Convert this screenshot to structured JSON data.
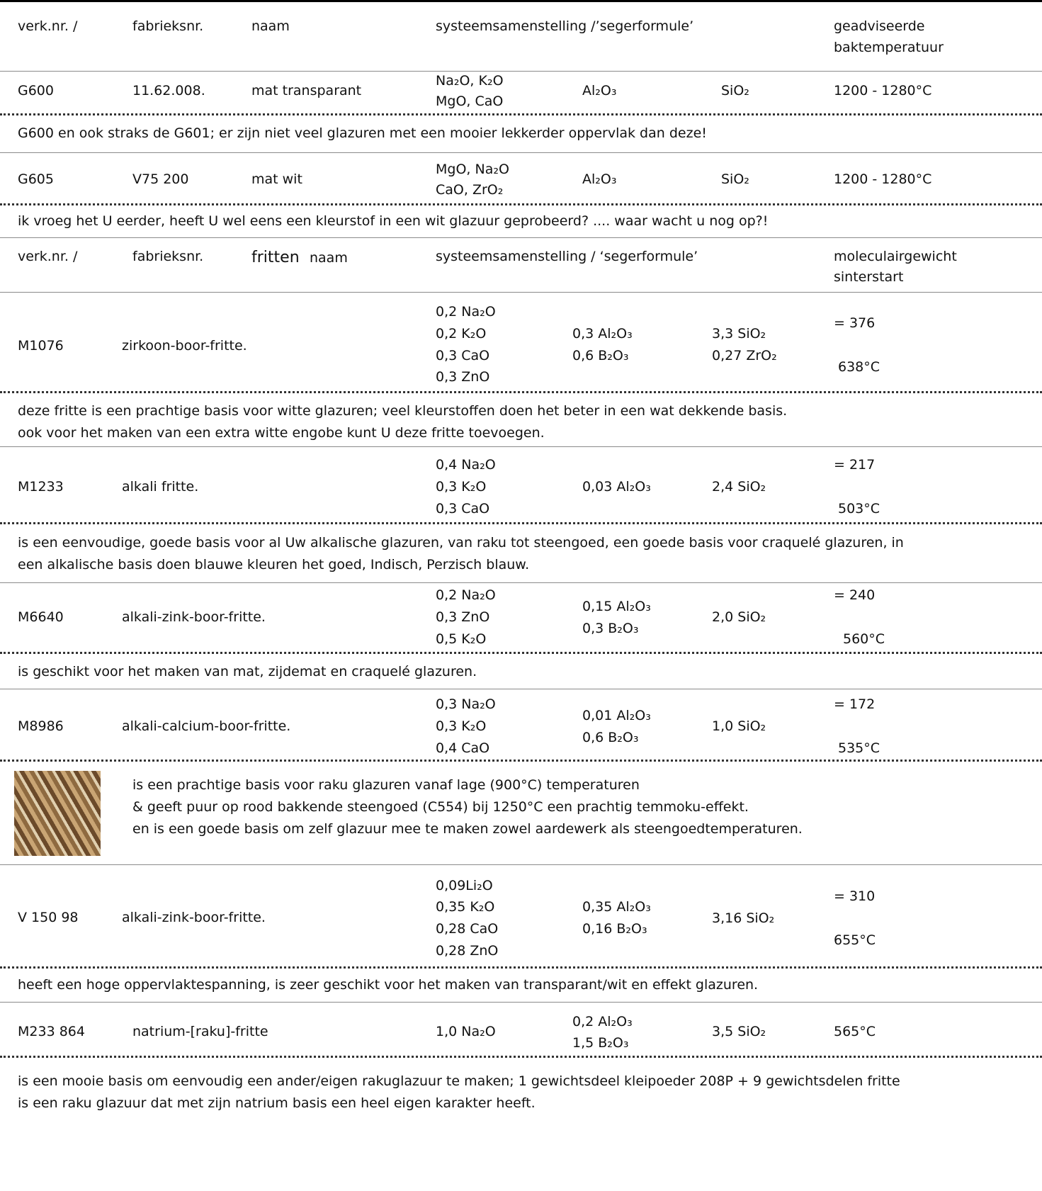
{
  "glazes": {
    "header": {
      "verk": "verk.nr. /",
      "fabr": "fabrieksnr.",
      "naam": "naam",
      "systeem": "systeemsamenstelling /’segerformule’",
      "temp": [
        "geadviseerde",
        "baktemperatuur"
      ]
    },
    "items": [
      {
        "verk": "G600",
        "fabr": "11.62.008.",
        "naam": "mat transparant",
        "flux": [
          "Na₂O, K₂O",
          "MgO, CaO"
        ],
        "alumina": [
          "Al₂O₃"
        ],
        "silica": [
          "SiO₂"
        ],
        "temp": "1200 - 1280°C",
        "comment": [
          "G600 en ook straks de G601; er zijn niet veel glazuren met een mooier lekkerder oppervlak dan deze!"
        ]
      },
      {
        "verk": "G605",
        "fabr": "V75 200",
        "naam": "mat wit",
        "flux": [
          "MgO, Na₂O",
          "CaO, ZrO₂"
        ],
        "alumina": [
          "Al₂O₃"
        ],
        "silica": [
          "SiO₂"
        ],
        "temp": "1200 - 1280°C",
        "comment": [
          "ik vroeg het U eerder, heeft U wel eens een kleurstof in een wit glazuur geprobeerd? .... waar wacht u nog op?!"
        ]
      }
    ]
  },
  "frits": {
    "header": {
      "verk": "verk.nr. /",
      "fabr": "fabrieksnr.",
      "fritten": "fritten",
      "naam": "naam",
      "systeem": "systeemsamenstelling / ‘segerformule’",
      "mw": [
        "moleculairgewicht",
        "sinterstart"
      ]
    },
    "items": [
      {
        "verk": "M1076",
        "naam": "zirkoon-boor-fritte.",
        "flux": [
          "0,2 Na₂O",
          "0,2 K₂O",
          "0,3 CaO",
          "0,3 ZnO"
        ],
        "alumina": [
          "0,3 Al₂O₃",
          "0,6 B₂O₃"
        ],
        "silica": [
          "3,3 SiO₂",
          "0,27 ZrO₂"
        ],
        "mw": "= 376",
        "sinter": "638°C",
        "comment": [
          "deze fritte is een prachtige basis voor witte glazuren; veel kleurstoffen doen het beter in een wat dekkende basis.",
          "ook voor het maken van een extra witte engobe kunt U deze fritte toevoegen."
        ]
      },
      {
        "verk": "M1233",
        "naam": "alkali fritte.",
        "flux": [
          "0,4 Na₂O",
          "0,3 K₂O",
          "0,3 CaO"
        ],
        "alumina": [
          "0,03 Al₂O₃"
        ],
        "silica": [
          "2,4 SiO₂"
        ],
        "mw": "= 217",
        "sinter": "503°C",
        "comment": [
          "is een eenvoudige, goede basis voor al Uw alkalische glazuren, van raku tot steengoed,  een goede basis voor craquelé glazuren, in",
          "een alkalische basis doen blauwe kleuren het goed, Indisch, Perzisch blauw."
        ]
      },
      {
        "verk": "M6640",
        "naam": "alkali-zink-boor-fritte.",
        "flux": [
          "0,2 Na₂O",
          "0,3 ZnO",
          "0,5 K₂O"
        ],
        "alumina": [
          "0,15 Al₂O₃",
          "0,3 B₂O₃"
        ],
        "silica": [
          "2,0 SiO₂"
        ],
        "mw": "= 240",
        "sinter": "560°C",
        "comment": [
          "is geschikt voor het maken van mat, zijdemat en craquelé glazuren."
        ]
      },
      {
        "verk": "M8986",
        "naam": "alkali-calcium-boor-fritte.",
        "flux": [
          "0,3 Na₂O",
          "0,3 K₂O",
          "0,4 CaO"
        ],
        "alumina": [
          "0,01 Al₂O₃",
          "0,6 B₂O₃"
        ],
        "silica": [
          "1,0 SiO₂"
        ],
        "mw": "= 172",
        "sinter": "535°C",
        "comment": [
          "is een prachtige basis voor raku glazuren vanaf lage (900°C) temperaturen",
          "& geeft puur op rood bakkende steengoed (C554) bij 1250°C een prachtig temmoku-effekt.",
          "en is een goede basis om zelf glazuur mee te maken zowel aardewerk als steengoedtemperaturen."
        ]
      },
      {
        "verk": "V 150 98",
        "naam": "alkali-zink-boor-fritte.",
        "flux": [
          "0,09Li₂O",
          "0,35 K₂O",
          "0,28 CaO",
          "0,28 ZnO"
        ],
        "alumina": [
          "0,35 Al₂O₃",
          "0,16 B₂O₃"
        ],
        "silica": [
          "3,16 SiO₂"
        ],
        "mw": "= 310",
        "sinter": "655°C",
        "comment": [
          "heeft een hoge oppervlaktespanning, is zeer geschikt voor het maken van transparant/wit en effekt glazuren."
        ]
      },
      {
        "verk": "M233 864",
        "naam": "natrium-[raku]-fritte",
        "flux": [
          "1,0 Na₂O"
        ],
        "alumina": [
          "0,2 Al₂O₃",
          "1,5 B₂O₃"
        ],
        "silica": [
          "3,5 SiO₂"
        ],
        "sinter": "565°C",
        "comment": [
          "is een mooie basis om eenvoudig een ander/eigen rakuglazuur te maken; 1 gewichtsdeel kleipoeder 208P + 9 gewichtsdelen fritte",
          "is een raku glazuur dat met zijn natrium basis een heel eigen karakter heeft."
        ]
      }
    ]
  }
}
